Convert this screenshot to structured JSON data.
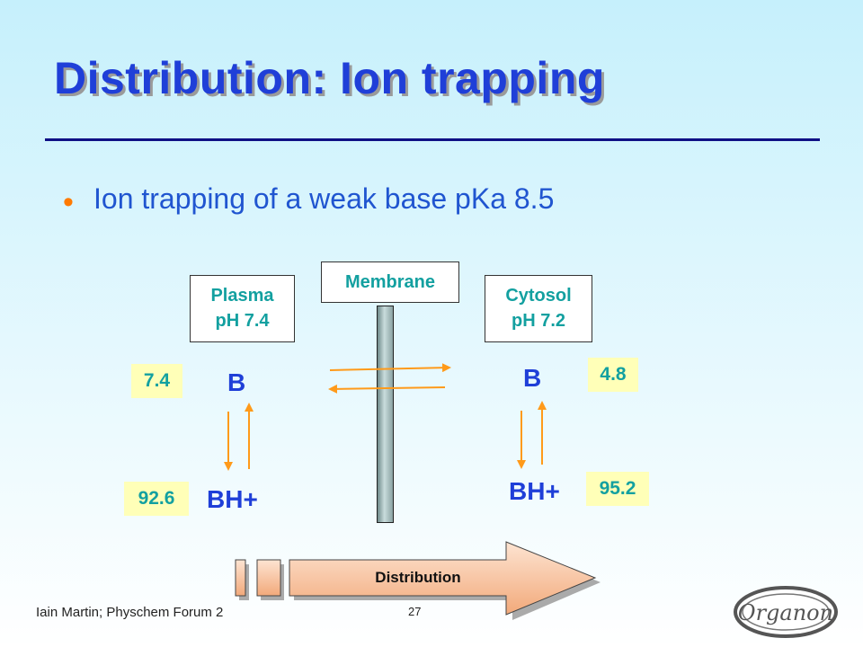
{
  "title": "Distribution: Ion trapping",
  "bullet": "Ion trapping of a weak base pKa 8.5",
  "membrane_label": "Membrane",
  "plasma": {
    "line1": "Plasma",
    "line2": "pH 7.4",
    "b": "B",
    "bh": "BH+",
    "b_value": "7.4",
    "bh_value": "92.6"
  },
  "cytosol": {
    "line1": "Cytosol",
    "line2": "pH 7.2",
    "b": "B",
    "bh": "BH+",
    "b_value": "4.8",
    "bh_value": "95.2"
  },
  "progress_label": "Distribution",
  "footer": "Iain Martin; Physchem Forum 2",
  "page_number": "27",
  "logo_text": "Organon",
  "colors": {
    "title": "#1f3fd8",
    "teal": "#13a0a0",
    "arrow": "#ff9a1a",
    "value_bg": "#ffffb8"
  }
}
